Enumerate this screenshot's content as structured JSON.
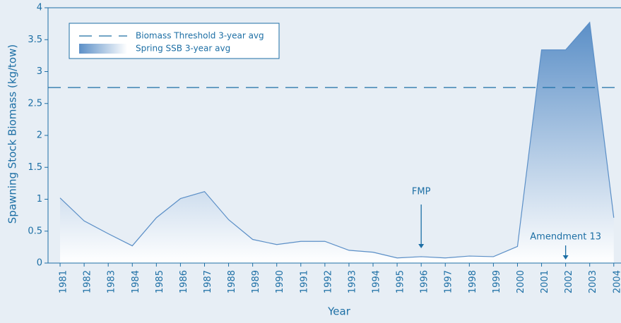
{
  "chart_data": {
    "type": "area",
    "x": [
      1981,
      1982,
      1983,
      1984,
      1985,
      1986,
      1987,
      1988,
      1989,
      1990,
      1991,
      1992,
      1993,
      1994,
      1995,
      1996,
      1997,
      1998,
      1999,
      2000,
      2001,
      2002,
      2003,
      2004
    ],
    "xticks": [
      1981,
      1982,
      1983,
      1984,
      1985,
      1986,
      1987,
      1988,
      1989,
      1990,
      1991,
      1992,
      1993,
      1994,
      1995,
      1996,
      1997,
      1998,
      1999,
      2000,
      2001,
      2002,
      2003,
      2004
    ],
    "xlim": [
      1980.5,
      2004.3
    ],
    "ylim": [
      0,
      4
    ],
    "yticks": [
      0,
      0.5,
      1,
      1.5,
      2,
      2.5,
      3,
      3.5,
      4
    ],
    "xlabel": "Year",
    "ylabel": "Spawning Stock Biomass (kg/tow)",
    "series": [
      {
        "name": "Spring SSB 3-year avg",
        "color": "#5b8fc7",
        "values": [
          1.02,
          0.66,
          0.46,
          0.27,
          0.71,
          1.01,
          1.12,
          0.68,
          0.37,
          0.29,
          0.34,
          0.34,
          0.2,
          0.17,
          0.08,
          0.1,
          0.08,
          0.11,
          0.1,
          0.26,
          3.34,
          3.34,
          3.77,
          0.71
        ]
      }
    ],
    "threshold": {
      "name": "Biomass Threshold 3-year avg",
      "value": 2.75,
      "color": "#1d6fa5"
    },
    "annotations": [
      {
        "text": "FMP",
        "x": 1996
      },
      {
        "text": "Amendment 13",
        "x": 2002
      }
    ]
  }
}
